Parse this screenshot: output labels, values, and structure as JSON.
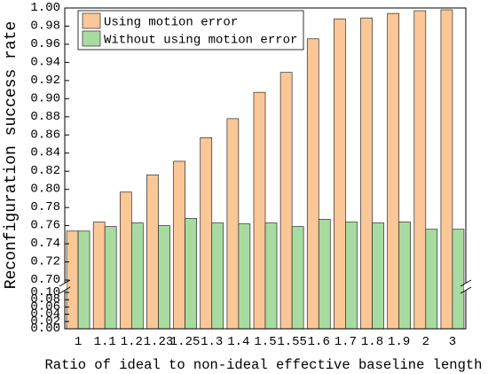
{
  "chart_data": {
    "type": "bar",
    "categories": [
      "1",
      "1.1",
      "1.2",
      "1.23",
      "1.25",
      "1.3",
      "1.4",
      "1.5",
      "1.55",
      "1.6",
      "1.7",
      "1.8",
      "1.9",
      "2",
      "3"
    ],
    "series": [
      {
        "name": "Using motion error",
        "color": "#FCC796",
        "values": [
          0.754,
          0.764,
          0.797,
          0.816,
          0.831,
          0.857,
          0.878,
          0.907,
          0.929,
          0.966,
          0.988,
          0.989,
          0.994,
          0.997,
          0.998
        ]
      },
      {
        "name": "Without using motion error",
        "color": "#A8DBA0",
        "values": [
          0.754,
          0.759,
          0.763,
          0.76,
          0.768,
          0.763,
          0.762,
          0.763,
          0.759,
          0.767,
          0.764,
          0.763,
          0.764,
          0.756,
          0.756
        ]
      }
    ],
    "xlabel": "Ratio of ideal to non-ideal effective baseline length",
    "ylabel": "Reconfiguration success rate",
    "ylim": [
      0,
      1.0
    ],
    "y_break": [
      0.1,
      0.7
    ],
    "yticks": [
      "0.00",
      "0.02",
      "0.04",
      "0.06",
      "0.08",
      "0.10",
      "0.70",
      "0.72",
      "0.74",
      "0.76",
      "0.78",
      "0.80",
      "0.82",
      "0.84",
      "0.86",
      "0.88",
      "0.90",
      "0.92",
      "0.94",
      "0.96",
      "0.98",
      "1.00"
    ],
    "legend": "top-left",
    "grid": false
  }
}
